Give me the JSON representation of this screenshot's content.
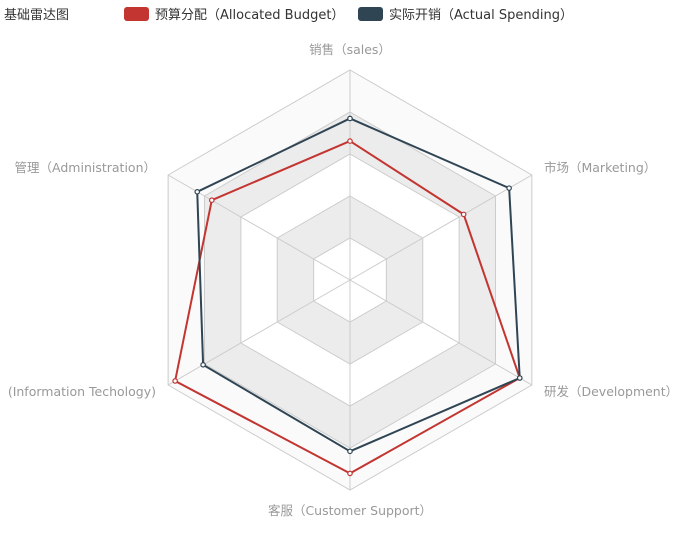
{
  "title": "基础雷达图",
  "legend": [
    {
      "label": "预算分配（Allocated Budget）",
      "color": "#c23531"
    },
    {
      "label": "实际开销（Actual Spending）",
      "color": "#2f4554"
    }
  ],
  "chart_data": {
    "type": "radar",
    "title": "基础雷达图",
    "indicators": [
      {
        "name": "销售（sales）",
        "max": 6500
      },
      {
        "name": "市场（Marketing）",
        "max": 16000
      },
      {
        "name": "研发（Development）",
        "max": 30000
      },
      {
        "name": "客服（Customer Support）",
        "max": 38000
      },
      {
        "name": "(Information Techology)",
        "max": 52000
      },
      {
        "name": "管理（Administration）",
        "max": 25000
      }
    ],
    "series": [
      {
        "name": "预算分配（Allocated Budget）",
        "color": "#c23531",
        "values": [
          4300,
          10000,
          28000,
          35000,
          50000,
          19000
        ]
      },
      {
        "name": "实际开销（Actual Spending）",
        "color": "#2f4554",
        "values": [
          5000,
          14000,
          28000,
          31000,
          42000,
          21000
        ]
      }
    ],
    "split_number": 5,
    "legend_position": "top"
  }
}
